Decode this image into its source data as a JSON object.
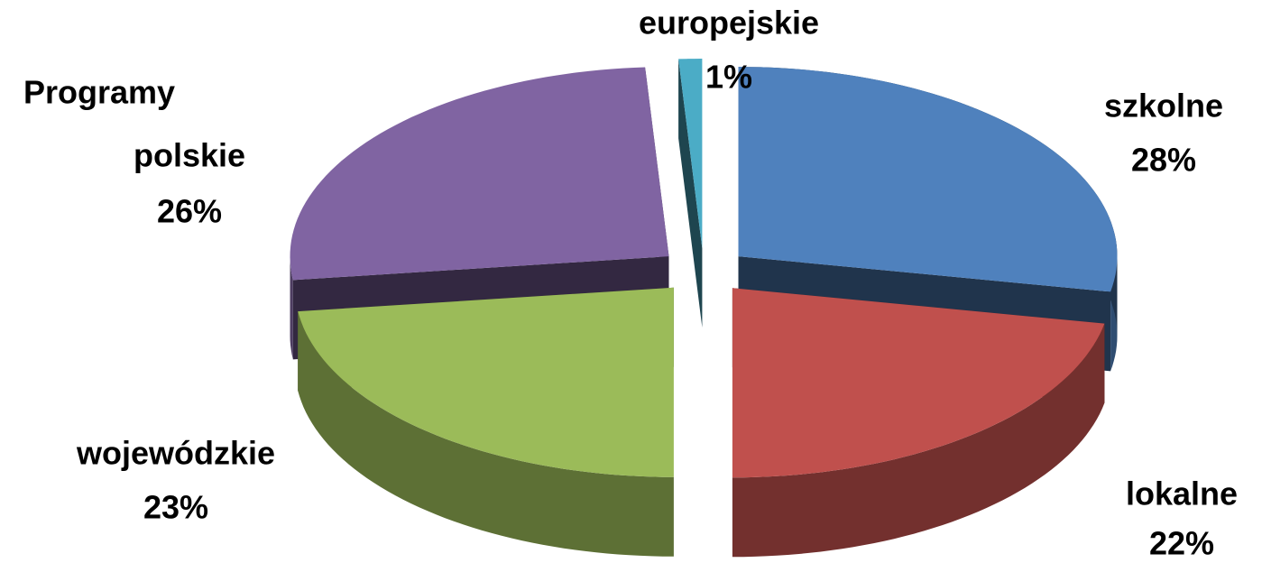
{
  "chart_data": {
    "type": "pie3d",
    "title": "Programy",
    "categories": [
      "szkolne",
      "lokalne",
      "wojewódzkie",
      "polskie",
      "europejskie"
    ],
    "values": [
      28,
      22,
      23,
      26,
      1
    ],
    "value_labels": [
      "28%",
      "22%",
      "23%",
      "26%",
      "1%"
    ],
    "colors": [
      "#4f81bd",
      "#c0504d",
      "#9bbb59",
      "#8064a2",
      "#4bacc6"
    ]
  }
}
